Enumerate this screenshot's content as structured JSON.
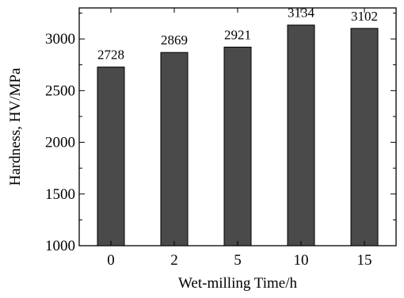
{
  "chart_data": {
    "type": "bar",
    "categories": [
      "0",
      "2",
      "5",
      "10",
      "15"
    ],
    "values": [
      2728,
      2869,
      2921,
      3134,
      3102
    ],
    "data_labels": [
      "2728",
      "2869",
      "2921",
      "3134",
      "3102"
    ],
    "xlabel": "Wet-milling Time/h",
    "ylabel": "Hardness, HV/MPa",
    "ylim": [
      1000,
      3300
    ],
    "yticks": [
      1000,
      1500,
      2000,
      2500,
      3000
    ],
    "ytick_labels": [
      "1000",
      "1500",
      "2000",
      "2500",
      "3000"
    ],
    "bar_color": "#4a4a4a",
    "grid": false,
    "legend": "none"
  }
}
